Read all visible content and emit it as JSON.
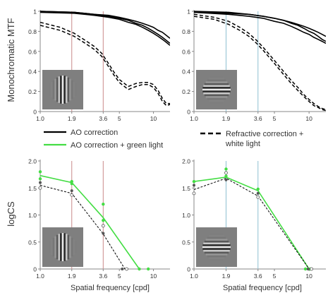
{
  "figure": {
    "ylabel_top": "Monochromatic MTF",
    "ylabel_bottom": "logCS",
    "xlabel": "Spatial frequency [cpd]"
  },
  "legend": {
    "items": [
      {
        "label": "AO correction",
        "style": "solid",
        "color": "#000000"
      },
      {
        "label": "AO correction + green light",
        "style": "solid",
        "color": "#44dd44"
      },
      {
        "label": "Refractive correction + white light",
        "label_lines": [
          "Refractive correction +",
          "white light"
        ],
        "style": "dashed",
        "color": "#000000"
      }
    ]
  },
  "colors": {
    "red_line": "#c98a8a",
    "blue_line": "#8ec0d2",
    "green": "#44dd44",
    "black": "#000000",
    "axis": "#888888"
  },
  "chart_data": [
    {
      "type": "line",
      "panel": "top-left",
      "xscale": "log",
      "x_ticks": [
        "1.0",
        "1.9",
        "3.6",
        "5",
        "10"
      ],
      "y_ticks": [
        "0",
        "0.2",
        "0.4",
        "0.6",
        "0.8",
        "1"
      ],
      "xlim": [
        1.0,
        14
      ],
      "ylim": [
        0,
        1
      ],
      "vlines": [
        1.9,
        3.6
      ],
      "vline_color": "red",
      "stimulus": "vertical-grating",
      "series": [
        {
          "style": "solid",
          "x": [
            1,
            2,
            3,
            4,
            5,
            6,
            7,
            8,
            9,
            10,
            11,
            12,
            13,
            14
          ],
          "y": [
            1.0,
            0.99,
            0.97,
            0.95,
            0.93,
            0.91,
            0.88,
            0.86,
            0.83,
            0.8,
            0.77,
            0.74,
            0.71,
            0.68
          ]
        },
        {
          "style": "solid",
          "x": [
            1,
            2,
            3,
            4,
            5,
            6,
            7,
            8,
            9,
            10,
            11,
            12,
            13,
            14
          ],
          "y": [
            1.0,
            0.99,
            0.97,
            0.96,
            0.94,
            0.92,
            0.9,
            0.88,
            0.86,
            0.84,
            0.81,
            0.79,
            0.76,
            0.73
          ]
        },
        {
          "style": "solid",
          "x": [
            1,
            2,
            3,
            4,
            5,
            6,
            7,
            8,
            9,
            10,
            11,
            12,
            13,
            14
          ],
          "y": [
            0.99,
            0.98,
            0.96,
            0.94,
            0.92,
            0.89,
            0.87,
            0.84,
            0.81,
            0.78,
            0.75,
            0.72,
            0.69,
            0.66
          ]
        },
        {
          "style": "dashed",
          "x": [
            1,
            1.5,
            2,
            2.5,
            3,
            3.5,
            4,
            4.5,
            5,
            6,
            7,
            8,
            9,
            10,
            11,
            12,
            13,
            14
          ],
          "y": [
            0.86,
            0.81,
            0.75,
            0.68,
            0.62,
            0.55,
            0.45,
            0.36,
            0.29,
            0.22,
            0.25,
            0.27,
            0.27,
            0.24,
            0.18,
            0.1,
            0.06,
            0.07
          ]
        },
        {
          "style": "dashed",
          "x": [
            1,
            1.5,
            2,
            2.5,
            3,
            3.5,
            4,
            4.5,
            5,
            6,
            7,
            8,
            9,
            10,
            11,
            12,
            13,
            14
          ],
          "y": [
            0.89,
            0.84,
            0.78,
            0.71,
            0.65,
            0.58,
            0.48,
            0.39,
            0.32,
            0.25,
            0.28,
            0.29,
            0.29,
            0.27,
            0.21,
            0.13,
            0.08,
            0.08
          ]
        }
      ]
    },
    {
      "type": "line",
      "panel": "top-right",
      "xscale": "log",
      "x_ticks": [
        "1.0",
        "1.9",
        "3.6",
        "5",
        "10"
      ],
      "y_ticks": [
        "0",
        "0.2",
        "0.4",
        "0.6",
        "0.8",
        "1"
      ],
      "xlim": [
        1.0,
        14
      ],
      "ylim": [
        0,
        1
      ],
      "vlines": [
        1.9,
        3.6
      ],
      "vline_color": "blue",
      "stimulus": "horizontal-grating",
      "series": [
        {
          "style": "solid",
          "x": [
            1,
            2,
            3,
            4,
            5,
            6,
            7,
            8,
            9,
            10,
            11,
            12,
            13,
            14
          ],
          "y": [
            0.99,
            0.98,
            0.97,
            0.95,
            0.93,
            0.91,
            0.89,
            0.87,
            0.85,
            0.83,
            0.81,
            0.79,
            0.77,
            0.75
          ]
        },
        {
          "style": "solid",
          "x": [
            1,
            2,
            3,
            4,
            5,
            6,
            7,
            8,
            9,
            10,
            11,
            12,
            13,
            14
          ],
          "y": [
            0.99,
            0.97,
            0.95,
            0.93,
            0.9,
            0.88,
            0.85,
            0.82,
            0.79,
            0.77,
            0.74,
            0.72,
            0.7,
            0.68
          ]
        },
        {
          "style": "solid",
          "x": [
            1,
            2,
            3,
            4,
            5,
            6,
            7,
            8,
            9,
            10,
            11,
            12,
            13,
            14
          ],
          "y": [
            1.0,
            0.99,
            0.97,
            0.95,
            0.93,
            0.91,
            0.88,
            0.86,
            0.83,
            0.8,
            0.78,
            0.75,
            0.72,
            0.7
          ]
        },
        {
          "style": "dashed",
          "x": [
            1,
            1.5,
            2,
            2.5,
            3,
            3.5,
            4,
            5,
            6,
            7,
            8,
            9,
            10,
            11,
            12,
            13,
            14
          ],
          "y": [
            0.95,
            0.92,
            0.87,
            0.81,
            0.75,
            0.68,
            0.61,
            0.48,
            0.37,
            0.28,
            0.21,
            0.15,
            0.1,
            0.06,
            0.04,
            0.02,
            0.01
          ]
        },
        {
          "style": "dashed",
          "x": [
            1,
            1.5,
            2,
            2.5,
            3,
            3.5,
            4,
            5,
            6,
            7,
            8,
            9,
            10,
            11,
            12,
            13,
            14
          ],
          "y": [
            0.97,
            0.94,
            0.9,
            0.84,
            0.78,
            0.71,
            0.64,
            0.51,
            0.4,
            0.31,
            0.24,
            0.17,
            0.12,
            0.08,
            0.05,
            0.03,
            0.02
          ]
        }
      ]
    },
    {
      "type": "line",
      "panel": "bottom-left",
      "xscale": "log",
      "x_ticks": [
        "1.0",
        "1.9",
        "3.6",
        "5",
        "10"
      ],
      "y_ticks": [
        "0",
        "0.5",
        "1.0",
        "1.5",
        "2.0"
      ],
      "xlim": [
        1.0,
        14
      ],
      "ylim": [
        0,
        2.0
      ],
      "vlines": [
        1.9,
        3.6
      ],
      "vline_color": "red",
      "stimulus": "vertical-grating",
      "series": [
        {
          "style": "solid-green",
          "x": [
            1.0,
            1.9,
            3.6,
            7.5
          ],
          "y": [
            1.73,
            1.6,
            0.95,
            0
          ]
        },
        {
          "style": "dashed-black",
          "x": [
            1.0,
            1.9,
            3.6,
            5.6
          ],
          "y": [
            1.55,
            1.4,
            0.65,
            0
          ]
        }
      ],
      "points": [
        {
          "x": 1.0,
          "y": 1.8,
          "color": "green"
        },
        {
          "x": 1.0,
          "y": 1.67,
          "color": "green"
        },
        {
          "x": 1.9,
          "y": 1.62,
          "color": "green"
        },
        {
          "x": 1.9,
          "y": 1.58,
          "color": "green"
        },
        {
          "x": 3.6,
          "y": 1.2,
          "color": "green"
        },
        {
          "x": 3.6,
          "y": 0.9,
          "color": "green"
        },
        {
          "x": 7.5,
          "y": 0,
          "color": "green"
        },
        {
          "x": 9.0,
          "y": 0,
          "color": "green"
        },
        {
          "x": 1.0,
          "y": 1.6,
          "color": "black-filled"
        },
        {
          "x": 1.0,
          "y": 1.5,
          "color": "black-open"
        },
        {
          "x": 1.9,
          "y": 1.45,
          "color": "black-filled"
        },
        {
          "x": 1.9,
          "y": 1.37,
          "color": "black-open"
        },
        {
          "x": 3.6,
          "y": 0.8,
          "color": "black-open"
        },
        {
          "x": 3.6,
          "y": 0.66,
          "color": "black-filled"
        },
        {
          "x": 5.3,
          "y": 0,
          "color": "black-filled"
        },
        {
          "x": 5.8,
          "y": 0,
          "color": "black-open"
        }
      ]
    },
    {
      "type": "line",
      "panel": "bottom-right",
      "xscale": "log",
      "x_ticks": [
        "1.0",
        "1.9",
        "3.6",
        "5",
        "10"
      ],
      "y_ticks": [
        "0",
        "0.5",
        "1.0",
        "1.5",
        "2.0"
      ],
      "xlim": [
        1.0,
        14
      ],
      "ylim": [
        0,
        2.0
      ],
      "vlines": [
        1.9,
        3.6
      ],
      "vline_color": "blue",
      "stimulus": "horizontal-grating",
      "series": [
        {
          "style": "solid-green",
          "x": [
            1.0,
            1.9,
            3.6,
            10.0
          ],
          "y": [
            1.62,
            1.7,
            1.45,
            0
          ]
        },
        {
          "style": "dashed-black",
          "x": [
            1.0,
            1.9,
            3.6,
            10.0
          ],
          "y": [
            1.47,
            1.68,
            1.35,
            0
          ]
        }
      ],
      "points": [
        {
          "x": 1.0,
          "y": 1.62,
          "color": "green"
        },
        {
          "x": 1.9,
          "y": 1.85,
          "color": "green"
        },
        {
          "x": 1.9,
          "y": 1.72,
          "color": "green"
        },
        {
          "x": 3.6,
          "y": 1.48,
          "color": "green"
        },
        {
          "x": 9.3,
          "y": 0,
          "color": "green"
        },
        {
          "x": 10.2,
          "y": 0,
          "color": "green"
        },
        {
          "x": 1.0,
          "y": 1.55,
          "color": "black-filled"
        },
        {
          "x": 1.0,
          "y": 1.4,
          "color": "black-open"
        },
        {
          "x": 1.9,
          "y": 1.78,
          "color": "black-open"
        },
        {
          "x": 1.9,
          "y": 1.65,
          "color": "black-filled"
        },
        {
          "x": 3.6,
          "y": 1.4,
          "color": "black-filled"
        },
        {
          "x": 3.6,
          "y": 1.33,
          "color": "black-open"
        },
        {
          "x": 9.8,
          "y": 0,
          "color": "black-filled"
        },
        {
          "x": 10.5,
          "y": 0,
          "color": "black-open"
        }
      ]
    }
  ]
}
